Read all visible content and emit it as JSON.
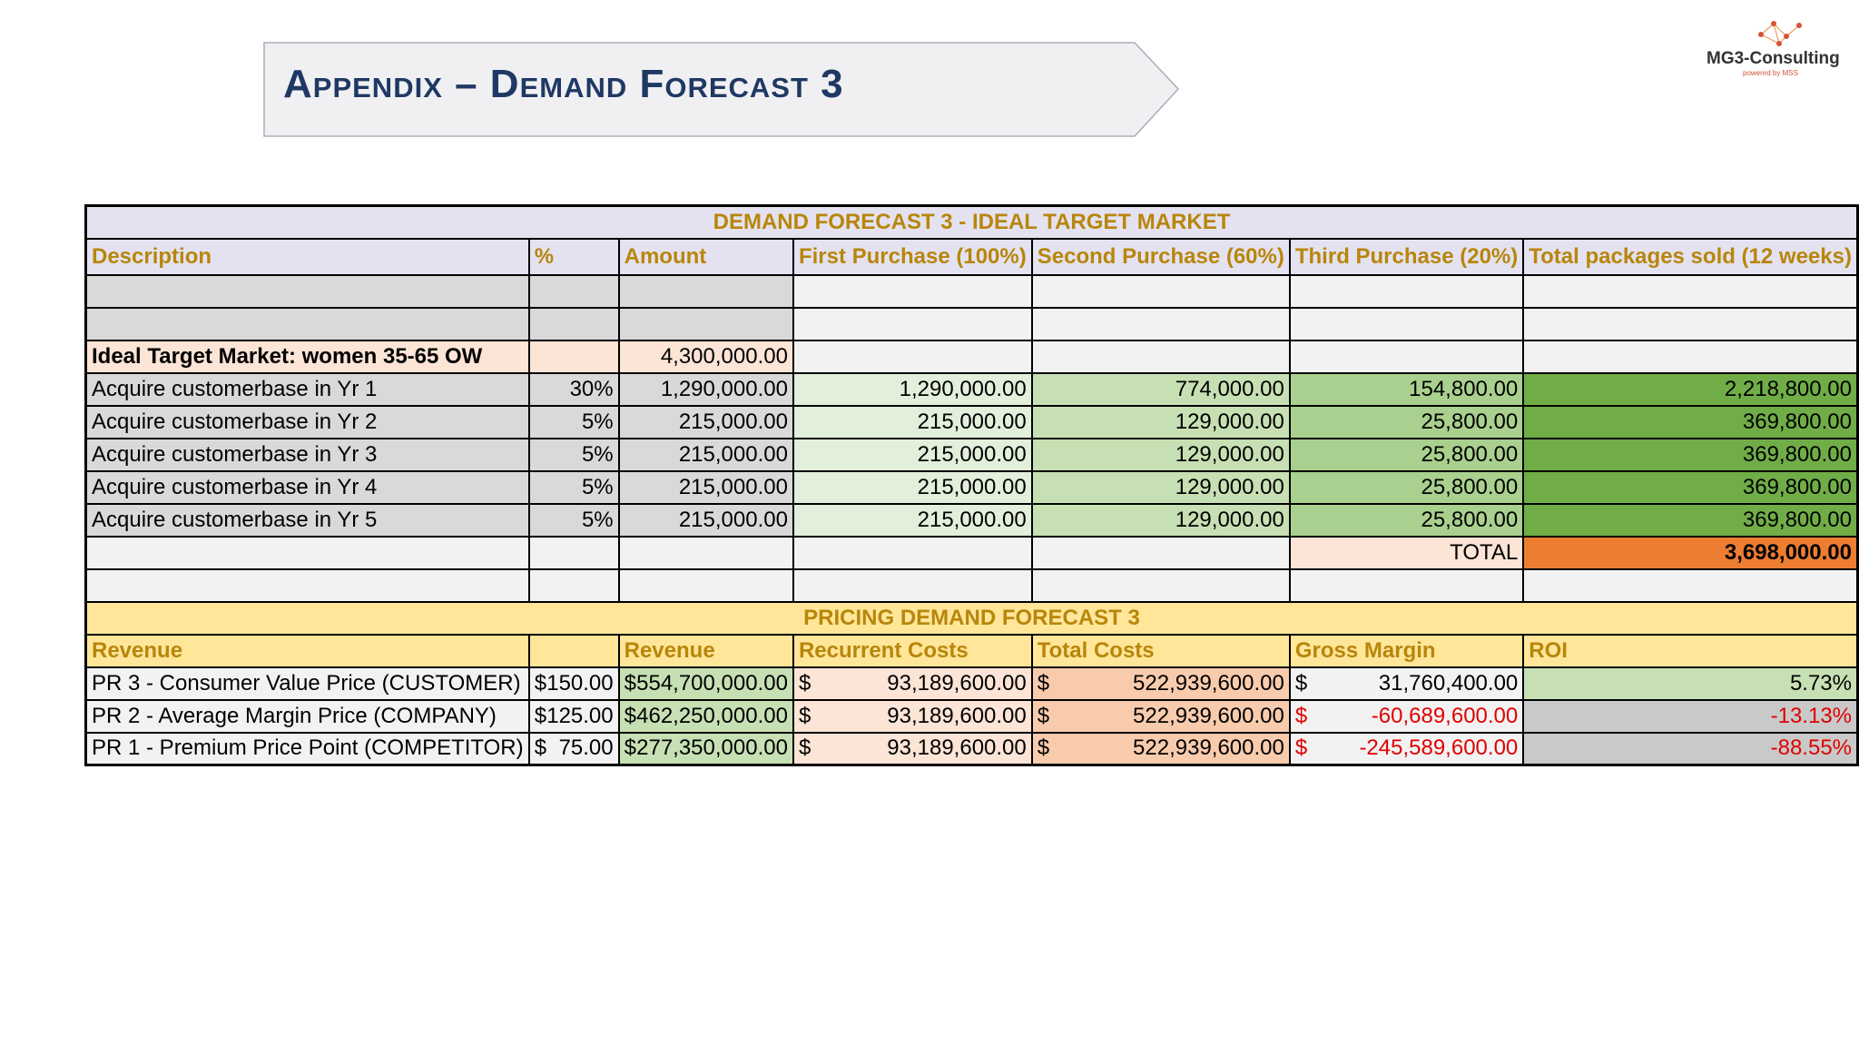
{
  "header": {
    "title": "Appendix – Demand Forecast 3",
    "logo_text": "MG3-Consulting",
    "logo_sub": "powered by MSS"
  },
  "demand": {
    "title": "DEMAND FORECAST 3 - IDEAL TARGET MARKET",
    "columns": [
      "Description",
      "%",
      "Amount",
      "First Purchase (100%)",
      "Second Purchase (60%)",
      "Third Purchase (20%)",
      "Total packages sold (12 weeks)"
    ],
    "target_label": "Ideal Target Market: women 35-65 OW",
    "target_amount": "4,300,000.00",
    "rows": [
      {
        "desc": "Acquire customerbase in Yr 1",
        "pct": "30%",
        "amount": "1,290,000.00",
        "first": "1,290,000.00",
        "second": "774,000.00",
        "third": "154,800.00",
        "total": "2,218,800.00"
      },
      {
        "desc": "Acquire customerbase in Yr 2",
        "pct": "5%",
        "amount": "215,000.00",
        "first": "215,000.00",
        "second": "129,000.00",
        "third": "25,800.00",
        "total": "369,800.00"
      },
      {
        "desc": "Acquire customerbase in Yr 3",
        "pct": "5%",
        "amount": "215,000.00",
        "first": "215,000.00",
        "second": "129,000.00",
        "third": "25,800.00",
        "total": "369,800.00"
      },
      {
        "desc": "Acquire customerbase in Yr 4",
        "pct": "5%",
        "amount": "215,000.00",
        "first": "215,000.00",
        "second": "129,000.00",
        "third": "25,800.00",
        "total": "369,800.00"
      },
      {
        "desc": "Acquire customerbase in Yr 5",
        "pct": "5%",
        "amount": "215,000.00",
        "first": "215,000.00",
        "second": "129,000.00",
        "third": "25,800.00",
        "total": "369,800.00"
      }
    ],
    "total_label": "TOTAL",
    "total_value": "3,698,000.00"
  },
  "pricing": {
    "title": "PRICING DEMAND FORECAST 3",
    "columns": [
      "Revenue",
      "",
      "Revenue",
      "Recurrent Costs",
      "Total Costs",
      "Gross Margin",
      "ROI"
    ],
    "currency": "$",
    "rows": [
      {
        "desc": "PR 3 - Consumer Value Price (CUSTOMER)",
        "price": "150.00",
        "revenue": "554,700,000.00",
        "recurrent": "93,189,600.00",
        "total_costs": "522,939,600.00",
        "margin": "31,760,400.00",
        "roi": "5.73%",
        "negative": false
      },
      {
        "desc": "PR 2 - Average Margin Price (COMPANY)",
        "price": "125.00",
        "revenue": "462,250,000.00",
        "recurrent": "93,189,600.00",
        "total_costs": "522,939,600.00",
        "margin": "-60,689,600.00",
        "roi": "-13.13%",
        "negative": true
      },
      {
        "desc": "PR 1 - Premium Price Point (COMPETITOR)",
        "price": "75.00",
        "revenue": "277,350,000.00",
        "recurrent": "93,189,600.00",
        "total_costs": "522,939,600.00",
        "margin": "-245,589,600.00",
        "roi": "-88.55%",
        "negative": true
      }
    ]
  }
}
